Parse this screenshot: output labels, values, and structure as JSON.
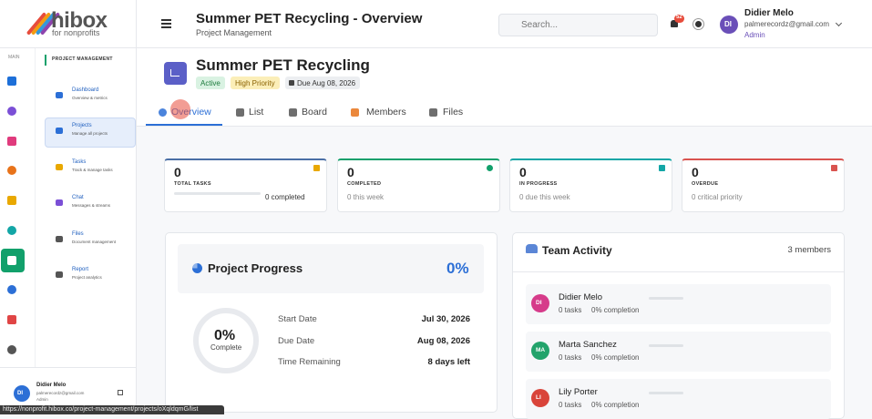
{
  "logo": {
    "name": "hibox",
    "tagline": "for nonprofits"
  },
  "sidebar": {
    "rail_label": "MAIN",
    "section": "PROJECT MANAGEMENT",
    "items": [
      {
        "title": "Dashboard",
        "subtitle": "Overview & metrics"
      },
      {
        "title": "Projects",
        "subtitle": "Manage all projects"
      },
      {
        "title": "Tasks",
        "subtitle": "Track & manage tasks"
      },
      {
        "title": "Chat",
        "subtitle": "Messages & streams"
      },
      {
        "title": "Files",
        "subtitle": "Document management"
      },
      {
        "title": "Report",
        "subtitle": "Project analytics"
      }
    ],
    "user": {
      "initials": "DI",
      "name": "Didier Melo",
      "email": "palmerecordz@gmail.com",
      "role": "Admin"
    }
  },
  "header": {
    "title": "Summer PET Recycling - Overview",
    "subtitle": "Project Management",
    "search_placeholder": "Search...",
    "notification_count": 52,
    "user": {
      "initials": "DI",
      "name": "Didier Melo",
      "email": "palmerecordz@gmail.com",
      "role": "Admin"
    }
  },
  "project": {
    "name": "Summer PET Recycling",
    "status": "Active",
    "priority": "High Priority",
    "due": "Due Aug 08, 2026"
  },
  "tabs": [
    "Overview",
    "List",
    "Board",
    "Members",
    "Files"
  ],
  "stats": [
    {
      "value": 0,
      "label": "TOTAL TASKS",
      "note": "0 completed"
    },
    {
      "value": 0,
      "label": "COMPLETED",
      "note": "0 this week"
    },
    {
      "value": 0,
      "label": "IN PROGRESS",
      "note": "0 due this week"
    },
    {
      "value": 0,
      "label": "OVERDUE",
      "note": "0 critical priority"
    }
  ],
  "progress": {
    "title": "Project Progress",
    "percent": "0%",
    "ring_value": "0%",
    "ring_label": "Complete",
    "rows": [
      {
        "label": "Start Date",
        "value": "Jul 30, 2026"
      },
      {
        "label": "Due Date",
        "value": "Aug 08, 2026"
      },
      {
        "label": "Time Remaining",
        "value": "8 days left"
      }
    ]
  },
  "team": {
    "title": "Team Activity",
    "count": "3 members",
    "members": [
      {
        "initials": "DI",
        "name": "Didier Melo",
        "tasks": "0 tasks",
        "completion": "0% completion"
      },
      {
        "initials": "MA",
        "name": "Marta Sanchez",
        "tasks": "0 tasks",
        "completion": "0% completion"
      },
      {
        "initials": "LI",
        "name": "Lily Porter",
        "tasks": "0 tasks",
        "completion": "0% completion"
      }
    ]
  },
  "status_url": "https://nonprofit.hibox.co/project-management/projects/oXqldqmG/list"
}
